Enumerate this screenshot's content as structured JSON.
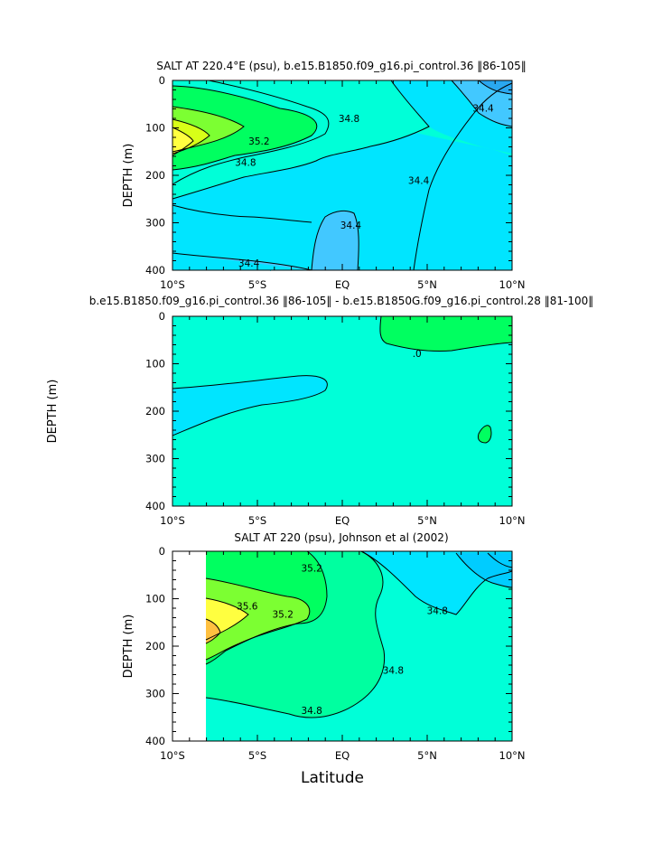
{
  "chart_data": [
    {
      "type": "contour",
      "title": "SALT AT 220.4°E (psu), b.e15.B1850.f09_g16.pi_control.36 ‖86-105‖",
      "ylabel": "DEPTH (m)",
      "xlabel": "",
      "xlim": [
        "10°S",
        "10°N"
      ],
      "ylim": [
        0,
        400
      ],
      "x_ticks": [
        "10°S",
        "5°S",
        "EQ",
        "5°N",
        "10°N"
      ],
      "y_ticks": [
        "0",
        "100",
        "200",
        "300",
        "400"
      ],
      "contour_labels": [
        {
          "text": "35.2",
          "lat": -4.9,
          "depth": 128
        },
        {
          "text": "34.8",
          "lat": -5.7,
          "depth": 172
        },
        {
          "text": "34.8",
          "lat": 0.4,
          "depth": 80
        },
        {
          "text": "34.4",
          "lat": 8.3,
          "depth": 58
        },
        {
          "text": "34.4",
          "lat": 4.5,
          "depth": 210
        },
        {
          "text": "34.4",
          "lat": 0.5,
          "depth": 305
        },
        {
          "text": "34.4",
          "lat": -5.5,
          "depth": 385
        }
      ]
    },
    {
      "type": "contour",
      "title": "b.e15.B1850.f09_g16.pi_control.36 ‖86-105‖ - b.e15.B1850G.f09_g16.pi_control.28 ‖81-100‖",
      "ylabel": "DEPTH (m)",
      "xlabel": "",
      "xlim": [
        "10°S",
        "10°N"
      ],
      "ylim": [
        0,
        400
      ],
      "x_ticks": [
        "10°S",
        "5°S",
        "EQ",
        "5°N",
        "10°N"
      ],
      "y_ticks": [
        "0",
        "100",
        "200",
        "300",
        "400"
      ],
      "contour_labels": [
        {
          "text": ".0",
          "lat": 4.4,
          "depth": 78
        }
      ]
    },
    {
      "type": "contour",
      "title": "SALT AT 220 (psu), Johnson et al (2002)",
      "ylabel": "DEPTH (m)",
      "xlabel": "Latitude",
      "xlim": [
        "10°S",
        "10°N"
      ],
      "ylim": [
        0,
        400
      ],
      "x_ticks": [
        "10°S",
        "5°S",
        "EQ",
        "5°N",
        "10°N"
      ],
      "y_ticks": [
        "0",
        "100",
        "200",
        "300",
        "400"
      ],
      "contour_labels": [
        {
          "text": "35.2",
          "lat": -1.8,
          "depth": 35
        },
        {
          "text": "35.6",
          "lat": -5.6,
          "depth": 115
        },
        {
          "text": "35.2",
          "lat": -3.5,
          "depth": 132
        },
        {
          "text": "34.8",
          "lat": 5.6,
          "depth": 125
        },
        {
          "text": "34.8",
          "lat": 3.0,
          "depth": 250
        },
        {
          "text": "34.8",
          "lat": -1.8,
          "depth": 335
        }
      ]
    }
  ]
}
